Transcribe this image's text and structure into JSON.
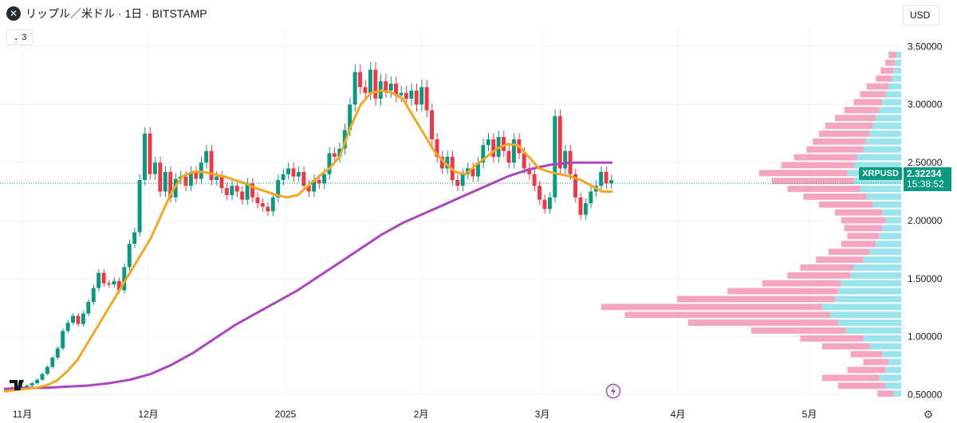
{
  "header": {
    "icon": "xrp-logo-icon",
    "title": "リップル／米ドル · 1日 · BITSTAMP"
  },
  "indicator_toggle": {
    "icon": "chevron-down-icon",
    "count": "3"
  },
  "currency": {
    "label": "USD"
  },
  "price_tag": {
    "symbol": "XRPUSD",
    "price": "2.32234",
    "countdown": "15:38:52"
  },
  "colors": {
    "up": "#089981",
    "down": "#f23645",
    "ma_fast": "#f5a623",
    "ma_slow": "#ab47bc",
    "vp_up": "#7fdde8",
    "vp_down": "#f48fb1",
    "grid": "#f0f3fa",
    "axis_text": "#131722"
  },
  "icons": {
    "settings": "gear-icon",
    "flash": "lightning-icon",
    "logo": "tradingview-logo-icon"
  },
  "chart_data": {
    "type": "candlestick",
    "symbol": "XRPUSD",
    "interval": "1日",
    "exchange": "BITSTAMP",
    "y_axis": {
      "ticks": [
        "3.50000",
        "3.00000",
        "2.50000",
        "2.00000",
        "1.50000",
        "1.00000",
        "0.50000"
      ],
      "values": [
        3.5,
        3.0,
        2.5,
        2.0,
        1.5,
        1.0,
        0.5
      ],
      "ylim": [
        0.47,
        3.66
      ]
    },
    "x_axis": {
      "ticks": [
        "11月",
        "12月",
        "2025",
        "2月",
        "3月",
        "4月",
        "5月"
      ]
    },
    "last_price": 2.32234,
    "ohlc_points": [
      [
        0.53,
        0.55
      ],
      [
        0.55,
        0.56
      ],
      [
        0.56,
        0.55
      ],
      [
        0.55,
        0.57
      ],
      [
        0.57,
        0.58
      ],
      [
        0.58,
        0.6
      ],
      [
        0.6,
        0.63
      ],
      [
        0.63,
        0.68
      ],
      [
        0.68,
        0.74
      ],
      [
        0.74,
        0.82
      ],
      [
        0.82,
        0.9
      ],
      [
        0.9,
        1.05
      ],
      [
        1.05,
        1.12
      ],
      [
        1.12,
        1.18
      ],
      [
        1.18,
        1.11
      ],
      [
        1.11,
        1.2
      ],
      [
        1.2,
        1.3
      ],
      [
        1.3,
        1.42
      ],
      [
        1.42,
        1.55
      ],
      [
        1.55,
        1.46
      ],
      [
        1.46,
        1.45
      ],
      [
        1.45,
        1.48
      ],
      [
        1.48,
        1.4
      ],
      [
        1.4,
        1.6
      ],
      [
        1.6,
        1.8
      ],
      [
        1.8,
        1.9
      ],
      [
        1.9,
        2.35
      ],
      [
        2.35,
        2.75
      ],
      [
        2.75,
        2.4
      ],
      [
        2.4,
        2.5
      ],
      [
        2.5,
        2.25
      ],
      [
        2.25,
        2.42
      ],
      [
        2.42,
        2.2
      ],
      [
        2.2,
        2.36
      ],
      [
        2.36,
        2.38
      ],
      [
        2.38,
        2.3
      ],
      [
        2.3,
        2.42
      ],
      [
        2.42,
        2.36
      ],
      [
        2.36,
        2.5
      ],
      [
        2.5,
        2.6
      ],
      [
        2.6,
        2.35
      ],
      [
        2.35,
        2.38
      ],
      [
        2.38,
        2.28
      ],
      [
        2.28,
        2.22
      ],
      [
        2.22,
        2.3
      ],
      [
        2.3,
        2.25
      ],
      [
        2.25,
        2.18
      ],
      [
        2.18,
        2.32
      ],
      [
        2.32,
        2.2
      ],
      [
        2.2,
        2.15
      ],
      [
        2.15,
        2.12
      ],
      [
        2.12,
        2.08
      ],
      [
        2.08,
        2.2
      ],
      [
        2.2,
        2.35
      ],
      [
        2.35,
        2.4
      ],
      [
        2.4,
        2.45
      ],
      [
        2.45,
        2.38
      ],
      [
        2.38,
        2.42
      ],
      [
        2.42,
        2.3
      ],
      [
        2.3,
        2.25
      ],
      [
        2.25,
        2.35
      ],
      [
        2.35,
        2.32
      ],
      [
        2.32,
        2.4
      ],
      [
        2.4,
        2.58
      ],
      [
        2.58,
        2.55
      ],
      [
        2.55,
        2.62
      ],
      [
        2.62,
        2.78
      ],
      [
        2.78,
        3.0
      ],
      [
        3.0,
        3.28
      ],
      [
        3.28,
        3.15
      ],
      [
        3.15,
        3.1
      ],
      [
        3.1,
        3.3
      ],
      [
        3.3,
        3.05
      ],
      [
        3.05,
        3.2
      ],
      [
        3.2,
        3.12
      ],
      [
        3.12,
        3.18
      ],
      [
        3.18,
        3.08
      ],
      [
        3.08,
        3.1
      ],
      [
        3.1,
        3.05
      ],
      [
        3.05,
        3.12
      ],
      [
        3.12,
        3.0
      ],
      [
        3.0,
        3.15
      ],
      [
        3.15,
        2.95
      ],
      [
        2.95,
        2.7
      ],
      [
        2.7,
        2.55
      ],
      [
        2.55,
        2.45
      ],
      [
        2.45,
        2.55
      ],
      [
        2.55,
        2.35
      ],
      [
        2.35,
        2.3
      ],
      [
        2.3,
        2.4
      ],
      [
        2.4,
        2.45
      ],
      [
        2.45,
        2.38
      ],
      [
        2.38,
        2.5
      ],
      [
        2.5,
        2.65
      ],
      [
        2.65,
        2.7
      ],
      [
        2.7,
        2.55
      ],
      [
        2.55,
        2.72
      ],
      [
        2.72,
        2.6
      ],
      [
        2.6,
        2.5
      ],
      [
        2.5,
        2.7
      ],
      [
        2.7,
        2.58
      ],
      [
        2.58,
        2.45
      ],
      [
        2.45,
        2.4
      ],
      [
        2.4,
        2.3
      ],
      [
        2.3,
        2.18
      ],
      [
        2.18,
        2.1
      ],
      [
        2.1,
        2.2
      ],
      [
        2.2,
        2.9
      ],
      [
        2.9,
        2.45
      ],
      [
        2.45,
        2.6
      ],
      [
        2.6,
        2.4
      ],
      [
        2.4,
        2.2
      ],
      [
        2.2,
        2.05
      ],
      [
        2.05,
        2.15
      ],
      [
        2.15,
        2.25
      ],
      [
        2.25,
        2.3
      ],
      [
        2.3,
        2.42
      ],
      [
        2.42,
        2.32
      ],
      [
        2.32,
        2.35
      ]
    ],
    "ma_fast": {
      "label": "",
      "values": [
        0.53,
        0.54,
        0.55,
        0.56,
        0.58,
        0.62,
        0.7,
        0.8,
        0.95,
        1.1,
        1.25,
        1.4,
        1.55,
        1.7,
        1.85,
        2.05,
        2.25,
        2.38,
        2.42,
        2.42,
        2.4,
        2.38,
        2.35,
        2.32,
        2.28,
        2.25,
        2.22,
        2.2,
        2.22,
        2.3,
        2.38,
        2.45,
        2.55,
        2.8,
        3.0,
        3.1,
        3.12,
        3.1,
        3.05,
        2.9,
        2.75,
        2.6,
        2.5,
        2.42,
        2.4,
        2.48,
        2.55,
        2.62,
        2.66,
        2.65,
        2.55,
        2.45,
        2.42,
        2.4,
        2.38,
        2.35,
        2.3,
        2.25,
        2.25
      ]
    },
    "ma_slow": {
      "label": "",
      "values": [
        0.55,
        0.56,
        0.56,
        0.57,
        0.58,
        0.6,
        0.63,
        0.68,
        0.76,
        0.86,
        0.98,
        1.1,
        1.2,
        1.3,
        1.4,
        1.52,
        1.64,
        1.76,
        1.88,
        1.98,
        2.06,
        2.14,
        2.22,
        2.3,
        2.38,
        2.44,
        2.48,
        2.5,
        2.5,
        2.5
      ]
    },
    "volume_profile": {
      "up_values": [
        0.05,
        0.1,
        0.14,
        0.1,
        0.08,
        0.12,
        0.2,
        0.24,
        0.35,
        0.4,
        0.45,
        0.5,
        0.42,
        0.4,
        0.38,
        0.32,
        0.3,
        0.24,
        0.2,
        0.16,
        0.14,
        0.12,
        0.1,
        0.12,
        0.18,
        0.22,
        0.26,
        0.3,
        0.34,
        0.3,
        0.28,
        0.24,
        0.22,
        0.2,
        0.18,
        0.16,
        0.14,
        0.12,
        0.1,
        0.08,
        0.06,
        0.05,
        0.04,
        0.03
      ],
      "down_values": [
        0.1,
        0.3,
        0.36,
        0.24,
        0.16,
        0.2,
        0.3,
        0.4,
        0.6,
        0.95,
        1.3,
        1.4,
        1.0,
        0.7,
        0.5,
        0.4,
        0.34,
        0.3,
        0.26,
        0.22,
        0.2,
        0.24,
        0.28,
        0.3,
        0.34,
        0.4,
        0.46,
        0.52,
        0.56,
        0.46,
        0.4,
        0.36,
        0.34,
        0.32,
        0.3,
        0.26,
        0.22,
        0.18,
        0.16,
        0.14,
        0.1,
        0.08,
        0.06,
        0.05
      ]
    }
  }
}
